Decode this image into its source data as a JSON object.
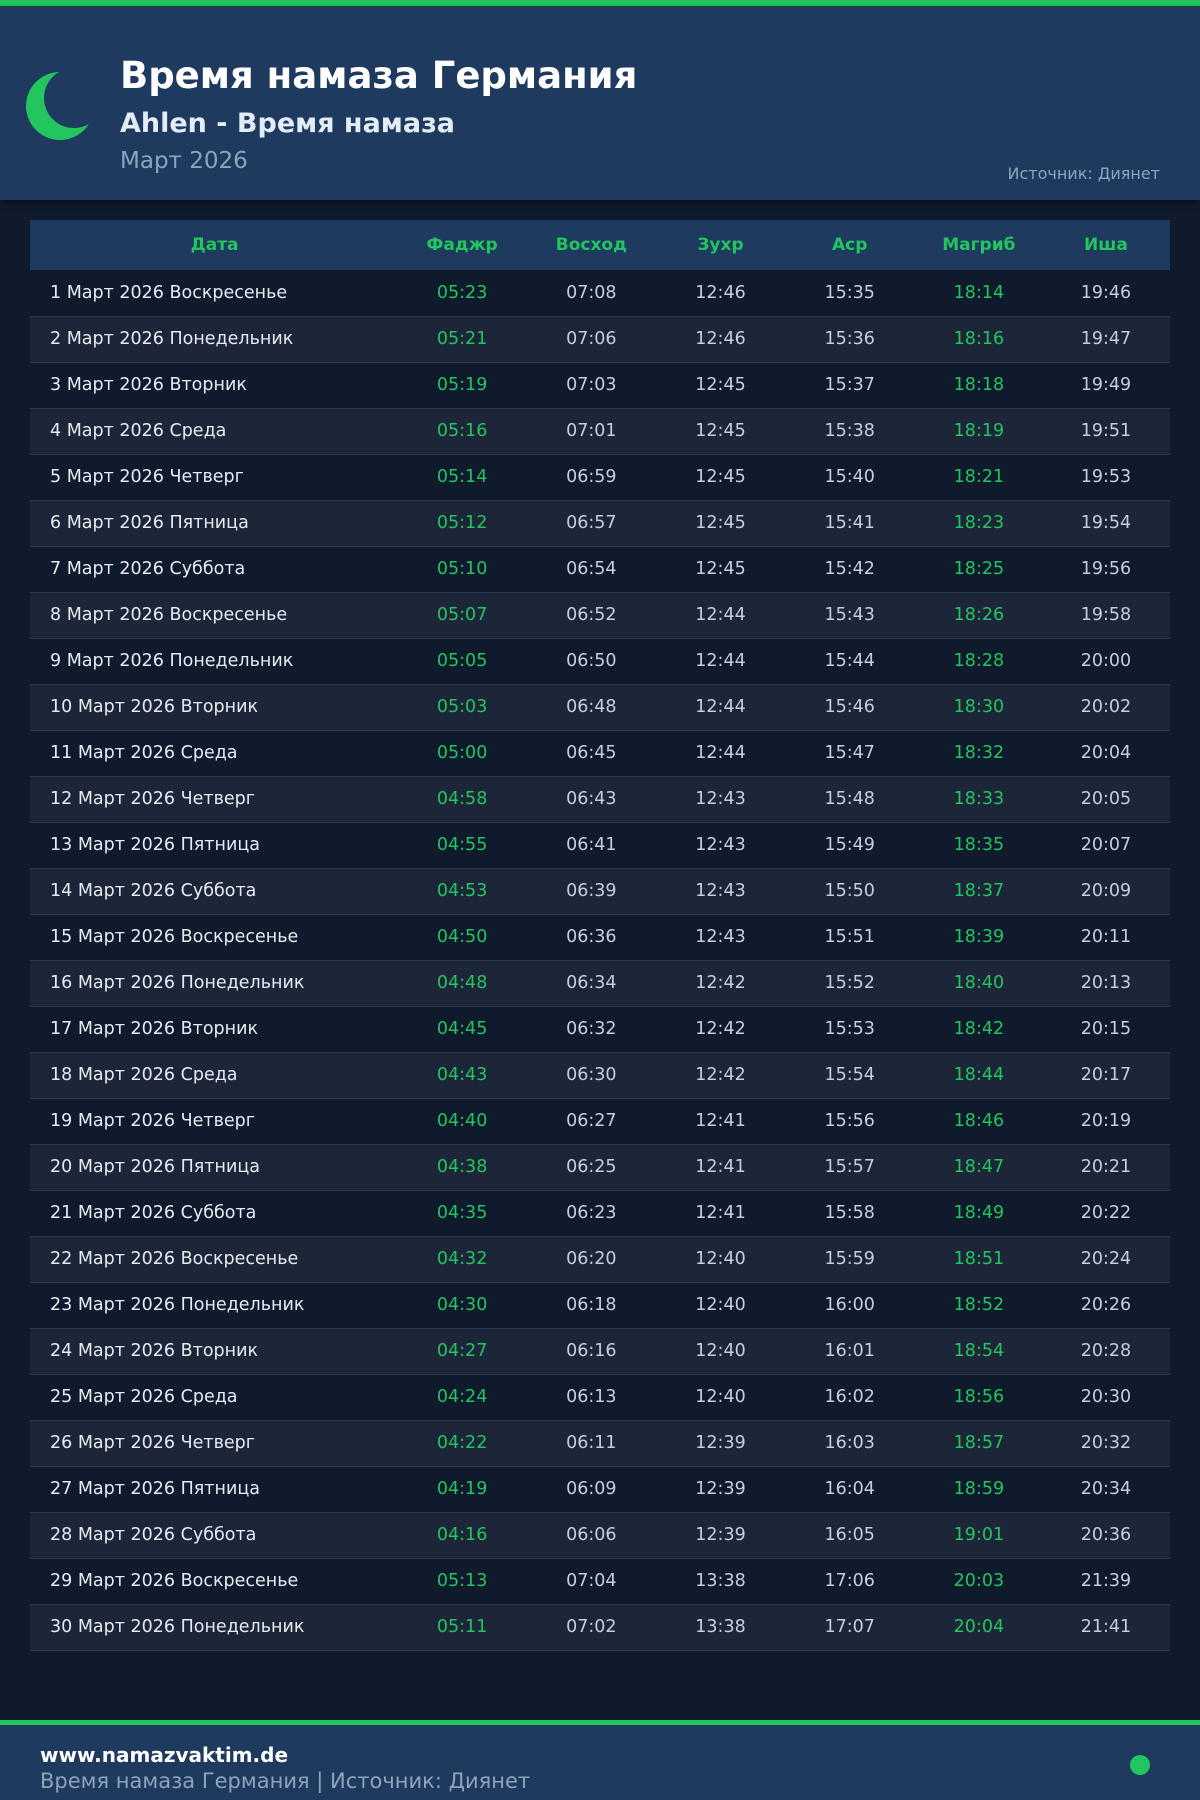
{
  "colors": {
    "accent": "#22c55e",
    "header_bg": "#1e3a5f",
    "page_bg": "#0f1a2c"
  },
  "header": {
    "icon": "crescent-moon-icon",
    "title": "Время намаза Германия",
    "subtitle": "Ahlen - Время намаза",
    "month": "Март 2026",
    "source": "Источник: Диянет"
  },
  "table": {
    "columns": [
      "Дата",
      "Фаджр",
      "Восход",
      "Зухр",
      "Аср",
      "Магриб",
      "Иша"
    ],
    "rows": [
      [
        "1 Март 2026 Воскресенье",
        "05:23",
        "07:08",
        "12:46",
        "15:35",
        "18:14",
        "19:46"
      ],
      [
        "2 Март 2026 Понедельник",
        "05:21",
        "07:06",
        "12:46",
        "15:36",
        "18:16",
        "19:47"
      ],
      [
        "3 Март 2026 Вторник",
        "05:19",
        "07:03",
        "12:45",
        "15:37",
        "18:18",
        "19:49"
      ],
      [
        "4 Март 2026 Среда",
        "05:16",
        "07:01",
        "12:45",
        "15:38",
        "18:19",
        "19:51"
      ],
      [
        "5 Март 2026 Четверг",
        "05:14",
        "06:59",
        "12:45",
        "15:40",
        "18:21",
        "19:53"
      ],
      [
        "6 Март 2026 Пятница",
        "05:12",
        "06:57",
        "12:45",
        "15:41",
        "18:23",
        "19:54"
      ],
      [
        "7 Март 2026 Суббота",
        "05:10",
        "06:54",
        "12:45",
        "15:42",
        "18:25",
        "19:56"
      ],
      [
        "8 Март 2026 Воскресенье",
        "05:07",
        "06:52",
        "12:44",
        "15:43",
        "18:26",
        "19:58"
      ],
      [
        "9 Март 2026 Понедельник",
        "05:05",
        "06:50",
        "12:44",
        "15:44",
        "18:28",
        "20:00"
      ],
      [
        "10 Март 2026 Вторник",
        "05:03",
        "06:48",
        "12:44",
        "15:46",
        "18:30",
        "20:02"
      ],
      [
        "11 Март 2026 Среда",
        "05:00",
        "06:45",
        "12:44",
        "15:47",
        "18:32",
        "20:04"
      ],
      [
        "12 Март 2026 Четверг",
        "04:58",
        "06:43",
        "12:43",
        "15:48",
        "18:33",
        "20:05"
      ],
      [
        "13 Март 2026 Пятница",
        "04:55",
        "06:41",
        "12:43",
        "15:49",
        "18:35",
        "20:07"
      ],
      [
        "14 Март 2026 Суббота",
        "04:53",
        "06:39",
        "12:43",
        "15:50",
        "18:37",
        "20:09"
      ],
      [
        "15 Март 2026 Воскресенье",
        "04:50",
        "06:36",
        "12:43",
        "15:51",
        "18:39",
        "20:11"
      ],
      [
        "16 Март 2026 Понедельник",
        "04:48",
        "06:34",
        "12:42",
        "15:52",
        "18:40",
        "20:13"
      ],
      [
        "17 Март 2026 Вторник",
        "04:45",
        "06:32",
        "12:42",
        "15:53",
        "18:42",
        "20:15"
      ],
      [
        "18 Март 2026 Среда",
        "04:43",
        "06:30",
        "12:42",
        "15:54",
        "18:44",
        "20:17"
      ],
      [
        "19 Март 2026 Четверг",
        "04:40",
        "06:27",
        "12:41",
        "15:56",
        "18:46",
        "20:19"
      ],
      [
        "20 Март 2026 Пятница",
        "04:38",
        "06:25",
        "12:41",
        "15:57",
        "18:47",
        "20:21"
      ],
      [
        "21 Март 2026 Суббота",
        "04:35",
        "06:23",
        "12:41",
        "15:58",
        "18:49",
        "20:22"
      ],
      [
        "22 Март 2026 Воскресенье",
        "04:32",
        "06:20",
        "12:40",
        "15:59",
        "18:51",
        "20:24"
      ],
      [
        "23 Март 2026 Понедельник",
        "04:30",
        "06:18",
        "12:40",
        "16:00",
        "18:52",
        "20:26"
      ],
      [
        "24 Март 2026 Вторник",
        "04:27",
        "06:16",
        "12:40",
        "16:01",
        "18:54",
        "20:28"
      ],
      [
        "25 Март 2026 Среда",
        "04:24",
        "06:13",
        "12:40",
        "16:02",
        "18:56",
        "20:30"
      ],
      [
        "26 Март 2026 Четверг",
        "04:22",
        "06:11",
        "12:39",
        "16:03",
        "18:57",
        "20:32"
      ],
      [
        "27 Март 2026 Пятница",
        "04:19",
        "06:09",
        "12:39",
        "16:04",
        "18:59",
        "20:34"
      ],
      [
        "28 Март 2026 Суббота",
        "04:16",
        "06:06",
        "12:39",
        "16:05",
        "19:01",
        "20:36"
      ],
      [
        "29 Март 2026 Воскресенье",
        "05:13",
        "07:04",
        "13:38",
        "17:06",
        "20:03",
        "21:39"
      ],
      [
        "30 Март 2026 Понедельник",
        "05:11",
        "07:02",
        "13:38",
        "17:07",
        "20:04",
        "21:41"
      ]
    ]
  },
  "footer": {
    "site": "www.namazvaktim.de",
    "text": "Время намаза Германия | Источник: Диянет"
  }
}
